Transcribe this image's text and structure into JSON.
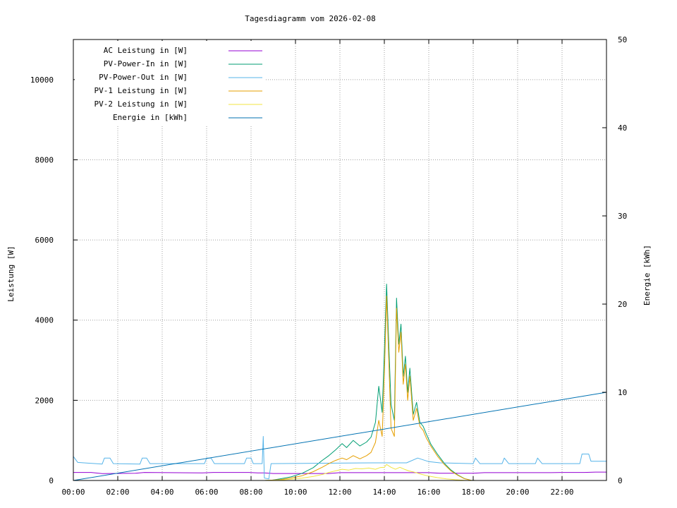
{
  "chart_data": {
    "type": "line",
    "title": "Tagesdiagramm vom 2026-02-08",
    "ylabel": "Leistung [W]",
    "y2label": "Energie [kWh]",
    "xlim": [
      0,
      24
    ],
    "ylim": [
      0,
      11000
    ],
    "y2lim": [
      0,
      50
    ],
    "x_ticks": [
      "00:00",
      "02:00",
      "04:00",
      "06:00",
      "08:00",
      "10:00",
      "12:00",
      "14:00",
      "16:00",
      "18:00",
      "20:00",
      "22:00"
    ],
    "y_ticks": [
      "0",
      "2000",
      "4000",
      "6000",
      "8000",
      "10000"
    ],
    "y2_ticks": [
      "0",
      "10",
      "20",
      "30",
      "40",
      "50"
    ],
    "grid": true,
    "legend_position": "top-left",
    "series": [
      {
        "name": "AC Leistung in [W]",
        "axis": "y",
        "color": "#9400d3",
        "points": [
          [
            0,
            200
          ],
          [
            0.8,
            200
          ],
          [
            1.3,
            170
          ],
          [
            2.8,
            180
          ],
          [
            3.2,
            200
          ],
          [
            5.8,
            190
          ],
          [
            6.3,
            200
          ],
          [
            7.9,
            200
          ],
          [
            8.3,
            190
          ],
          [
            8.6,
            190
          ],
          [
            9.0,
            175
          ],
          [
            11.5,
            175
          ],
          [
            12.0,
            195
          ],
          [
            16.0,
            195
          ],
          [
            16.5,
            180
          ],
          [
            18.0,
            180
          ],
          [
            18.5,
            195
          ],
          [
            21.5,
            195
          ],
          [
            22.0,
            200
          ],
          [
            23.0,
            200
          ],
          [
            23.5,
            210
          ],
          [
            24,
            210
          ]
        ]
      },
      {
        "name": "PV-Power-In in [W]",
        "axis": "y",
        "color": "#009e73",
        "points": [
          [
            0,
            0
          ],
          [
            8.6,
            0
          ],
          [
            8.9,
            5
          ],
          [
            9.3,
            40
          ],
          [
            9.8,
            90
          ],
          [
            10.3,
            180
          ],
          [
            10.8,
            320
          ],
          [
            11.2,
            500
          ],
          [
            11.5,
            620
          ],
          [
            11.8,
            760
          ],
          [
            12.1,
            920
          ],
          [
            12.3,
            820
          ],
          [
            12.6,
            1000
          ],
          [
            12.9,
            860
          ],
          [
            13.2,
            960
          ],
          [
            13.4,
            1080
          ],
          [
            13.6,
            1450
          ],
          [
            13.75,
            2350
          ],
          [
            13.9,
            1700
          ],
          [
            14.0,
            3200
          ],
          [
            14.1,
            4900
          ],
          [
            14.2,
            3400
          ],
          [
            14.3,
            1900
          ],
          [
            14.45,
            1500
          ],
          [
            14.55,
            4550
          ],
          [
            14.65,
            3400
          ],
          [
            14.75,
            3900
          ],
          [
            14.85,
            2600
          ],
          [
            14.95,
            3100
          ],
          [
            15.05,
            2200
          ],
          [
            15.15,
            2800
          ],
          [
            15.3,
            1650
          ],
          [
            15.45,
            1950
          ],
          [
            15.6,
            1450
          ],
          [
            15.75,
            1350
          ],
          [
            15.9,
            1150
          ],
          [
            16.1,
            900
          ],
          [
            16.4,
            650
          ],
          [
            16.7,
            430
          ],
          [
            17.0,
            260
          ],
          [
            17.3,
            140
          ],
          [
            17.6,
            50
          ],
          [
            17.9,
            5
          ],
          [
            18.1,
            0
          ],
          [
            24,
            0
          ]
        ]
      },
      {
        "name": "PV-Power-Out in [W]",
        "axis": "y",
        "color": "#56b4e9",
        "points": [
          [
            0,
            600
          ],
          [
            0.2,
            450
          ],
          [
            1.3,
            410
          ],
          [
            1.4,
            560
          ],
          [
            1.65,
            560
          ],
          [
            1.8,
            420
          ],
          [
            3.0,
            410
          ],
          [
            3.1,
            560
          ],
          [
            3.3,
            560
          ],
          [
            3.45,
            420
          ],
          [
            5.9,
            420
          ],
          [
            6.0,
            560
          ],
          [
            6.2,
            560
          ],
          [
            6.35,
            420
          ],
          [
            7.7,
            420
          ],
          [
            7.8,
            560
          ],
          [
            8.0,
            560
          ],
          [
            8.1,
            420
          ],
          [
            8.5,
            420
          ],
          [
            8.55,
            1100
          ],
          [
            8.6,
            60
          ],
          [
            8.8,
            40
          ],
          [
            8.9,
            420
          ],
          [
            13.5,
            440
          ],
          [
            15.0,
            440
          ],
          [
            15.5,
            560
          ],
          [
            16.0,
            470
          ],
          [
            16.5,
            440
          ],
          [
            18.0,
            420
          ],
          [
            18.1,
            560
          ],
          [
            18.3,
            420
          ],
          [
            19.3,
            420
          ],
          [
            19.4,
            560
          ],
          [
            19.6,
            420
          ],
          [
            20.8,
            420
          ],
          [
            20.9,
            560
          ],
          [
            21.1,
            420
          ],
          [
            22.8,
            420
          ],
          [
            22.9,
            660
          ],
          [
            23.2,
            660
          ],
          [
            23.3,
            480
          ],
          [
            24,
            480
          ]
        ]
      },
      {
        "name": "PV-1 Leistung in [W]",
        "axis": "y",
        "color": "#e69f00",
        "points": [
          [
            0,
            0
          ],
          [
            8.6,
            0
          ],
          [
            9.3,
            20
          ],
          [
            9.8,
            60
          ],
          [
            10.3,
            120
          ],
          [
            10.8,
            220
          ],
          [
            11.2,
            330
          ],
          [
            11.5,
            420
          ],
          [
            11.8,
            500
          ],
          [
            12.1,
            560
          ],
          [
            12.3,
            520
          ],
          [
            12.6,
            620
          ],
          [
            12.9,
            540
          ],
          [
            13.2,
            620
          ],
          [
            13.4,
            700
          ],
          [
            13.6,
            950
          ],
          [
            13.75,
            1500
          ],
          [
            13.9,
            1100
          ],
          [
            14.0,
            2600
          ],
          [
            14.1,
            4600
          ],
          [
            14.2,
            3000
          ],
          [
            14.3,
            1300
          ],
          [
            14.45,
            1100
          ],
          [
            14.55,
            4300
          ],
          [
            14.65,
            3200
          ],
          [
            14.75,
            3700
          ],
          [
            14.85,
            2400
          ],
          [
            14.95,
            2900
          ],
          [
            15.05,
            2000
          ],
          [
            15.15,
            2600
          ],
          [
            15.3,
            1500
          ],
          [
            15.45,
            1800
          ],
          [
            15.6,
            1350
          ],
          [
            15.75,
            1250
          ],
          [
            15.9,
            1050
          ],
          [
            16.1,
            850
          ],
          [
            16.4,
            600
          ],
          [
            16.7,
            400
          ],
          [
            17.0,
            240
          ],
          [
            17.3,
            130
          ],
          [
            17.6,
            45
          ],
          [
            17.9,
            5
          ],
          [
            18.1,
            0
          ],
          [
            24,
            0
          ]
        ]
      },
      {
        "name": "PV-2 Leistung in [W]",
        "axis": "y",
        "color": "#f0e442",
        "points": [
          [
            0,
            0
          ],
          [
            8.6,
            0
          ],
          [
            9.3,
            10
          ],
          [
            9.8,
            30
          ],
          [
            10.3,
            60
          ],
          [
            10.8,
            100
          ],
          [
            11.2,
            150
          ],
          [
            11.5,
            200
          ],
          [
            11.8,
            240
          ],
          [
            12.1,
            280
          ],
          [
            12.4,
            260
          ],
          [
            12.7,
            300
          ],
          [
            13.0,
            290
          ],
          [
            13.3,
            310
          ],
          [
            13.6,
            280
          ],
          [
            13.8,
            320
          ],
          [
            14.0,
            330
          ],
          [
            14.1,
            400
          ],
          [
            14.3,
            330
          ],
          [
            14.5,
            280
          ],
          [
            14.7,
            330
          ],
          [
            14.9,
            280
          ],
          [
            15.1,
            240
          ],
          [
            15.4,
            200
          ],
          [
            15.7,
            150
          ],
          [
            16.0,
            110
          ],
          [
            16.4,
            70
          ],
          [
            16.8,
            40
          ],
          [
            17.2,
            20
          ],
          [
            17.6,
            5
          ],
          [
            17.9,
            0
          ],
          [
            24,
            0
          ]
        ]
      },
      {
        "name": "Energie in [kWh]",
        "axis": "y2",
        "color": "#0072b2",
        "points": [
          [
            0,
            0
          ],
          [
            24,
            10
          ]
        ]
      }
    ]
  }
}
